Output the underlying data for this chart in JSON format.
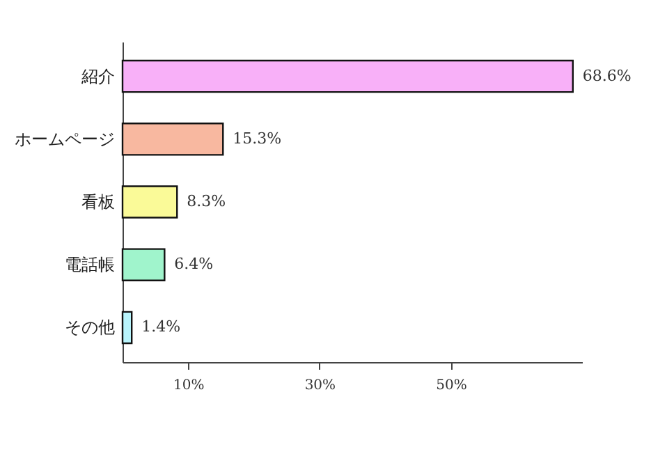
{
  "chart_data": {
    "type": "bar",
    "orientation": "horizontal",
    "categories": [
      "紹介",
      "ホームページ",
      "看板",
      "電話帳",
      "その他"
    ],
    "values": [
      68.6,
      15.3,
      8.3,
      6.4,
      1.4
    ],
    "colors": [
      "#f8b0f8",
      "#f8b8a0",
      "#fafa98",
      "#a0f4cc",
      "#b8f4fc"
    ],
    "value_labels": [
      "68.6%",
      "15.3%",
      "8.3%",
      "6.4%",
      "1.4%"
    ],
    "xlim": [
      0,
      70
    ],
    "xticks": [
      {
        "value": 10,
        "label": "10%"
      },
      {
        "value": 30,
        "label": "30%"
      },
      {
        "value": 50,
        "label": "50%"
      }
    ],
    "grid": false
  }
}
